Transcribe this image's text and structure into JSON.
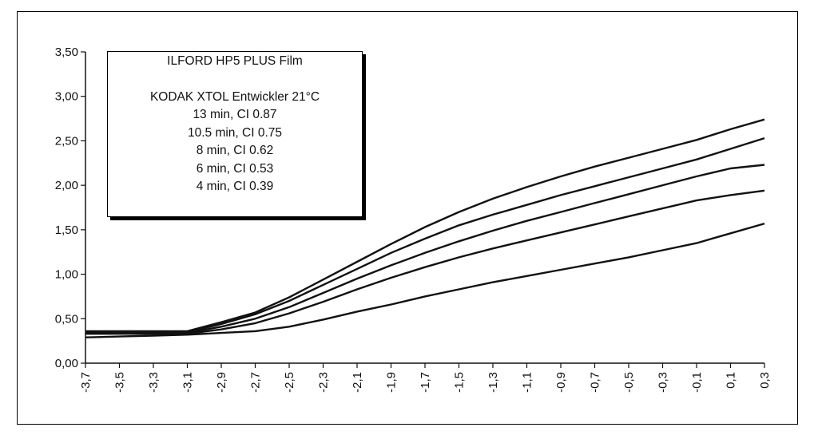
{
  "chart_data": {
    "type": "line",
    "title": "ILFORD HP5 PLUS Film",
    "subtitle": "KODAK XTOL Entwickler 21°C",
    "xlabel": "",
    "ylabel": "",
    "x_ticks": [
      "-3,7",
      "-3,5",
      "-3,3",
      "-3,1",
      "-2,9",
      "-2,7",
      "-2,5",
      "-2,3",
      "-2,1",
      "-1,9",
      "-1,7",
      "-1,5",
      "-1,3",
      "-1,1",
      "-0,9",
      "-0,7",
      "-0,5",
      "-0,3",
      "-0,1",
      "0,1",
      "0,3"
    ],
    "y_ticks": [
      "0,00",
      "0,50",
      "1,00",
      "1,50",
      "2,00",
      "2,50",
      "3,00",
      "3,50"
    ],
    "xlim": [
      -3.7,
      0.3
    ],
    "ylim": [
      0,
      3.5
    ],
    "grid": false,
    "legend_position": "top-left",
    "line_color": "#111111",
    "x": [
      -3.7,
      -3.5,
      -3.3,
      -3.1,
      -2.9,
      -2.7,
      -2.5,
      -2.3,
      -2.1,
      -1.9,
      -1.7,
      -1.5,
      -1.3,
      -1.1,
      -0.9,
      -0.7,
      -0.5,
      -0.3,
      -0.1,
      0.1,
      0.3
    ],
    "series": [
      {
        "name": "13 min, CI 0.87",
        "values": [
          0.36,
          0.36,
          0.36,
          0.36,
          0.46,
          0.57,
          0.74,
          0.94,
          1.14,
          1.34,
          1.53,
          1.7,
          1.85,
          1.98,
          2.1,
          2.21,
          2.31,
          2.41,
          2.51,
          2.63,
          2.74
        ]
      },
      {
        "name": "10.5 min, CI 0.75",
        "values": [
          0.35,
          0.35,
          0.35,
          0.35,
          0.44,
          0.55,
          0.7,
          0.88,
          1.06,
          1.24,
          1.4,
          1.55,
          1.67,
          1.78,
          1.89,
          1.99,
          2.09,
          2.19,
          2.29,
          2.41,
          2.53
        ]
      },
      {
        "name": "8 min, CI 0.62",
        "values": [
          0.34,
          0.34,
          0.34,
          0.34,
          0.41,
          0.5,
          0.63,
          0.79,
          0.95,
          1.1,
          1.24,
          1.37,
          1.49,
          1.6,
          1.7,
          1.8,
          1.9,
          2.0,
          2.1,
          2.19,
          2.23
        ]
      },
      {
        "name": "6 min, CI 0.53",
        "values": [
          0.33,
          0.33,
          0.33,
          0.33,
          0.38,
          0.45,
          0.56,
          0.69,
          0.83,
          0.96,
          1.08,
          1.19,
          1.29,
          1.38,
          1.47,
          1.56,
          1.65,
          1.74,
          1.83,
          1.89,
          1.94
        ]
      },
      {
        "name": "4 min, CI 0.39",
        "values": [
          0.29,
          0.3,
          0.31,
          0.32,
          0.34,
          0.36,
          0.41,
          0.49,
          0.58,
          0.66,
          0.75,
          0.83,
          0.91,
          0.98,
          1.05,
          1.12,
          1.19,
          1.27,
          1.35,
          1.46,
          1.57
        ]
      }
    ]
  }
}
